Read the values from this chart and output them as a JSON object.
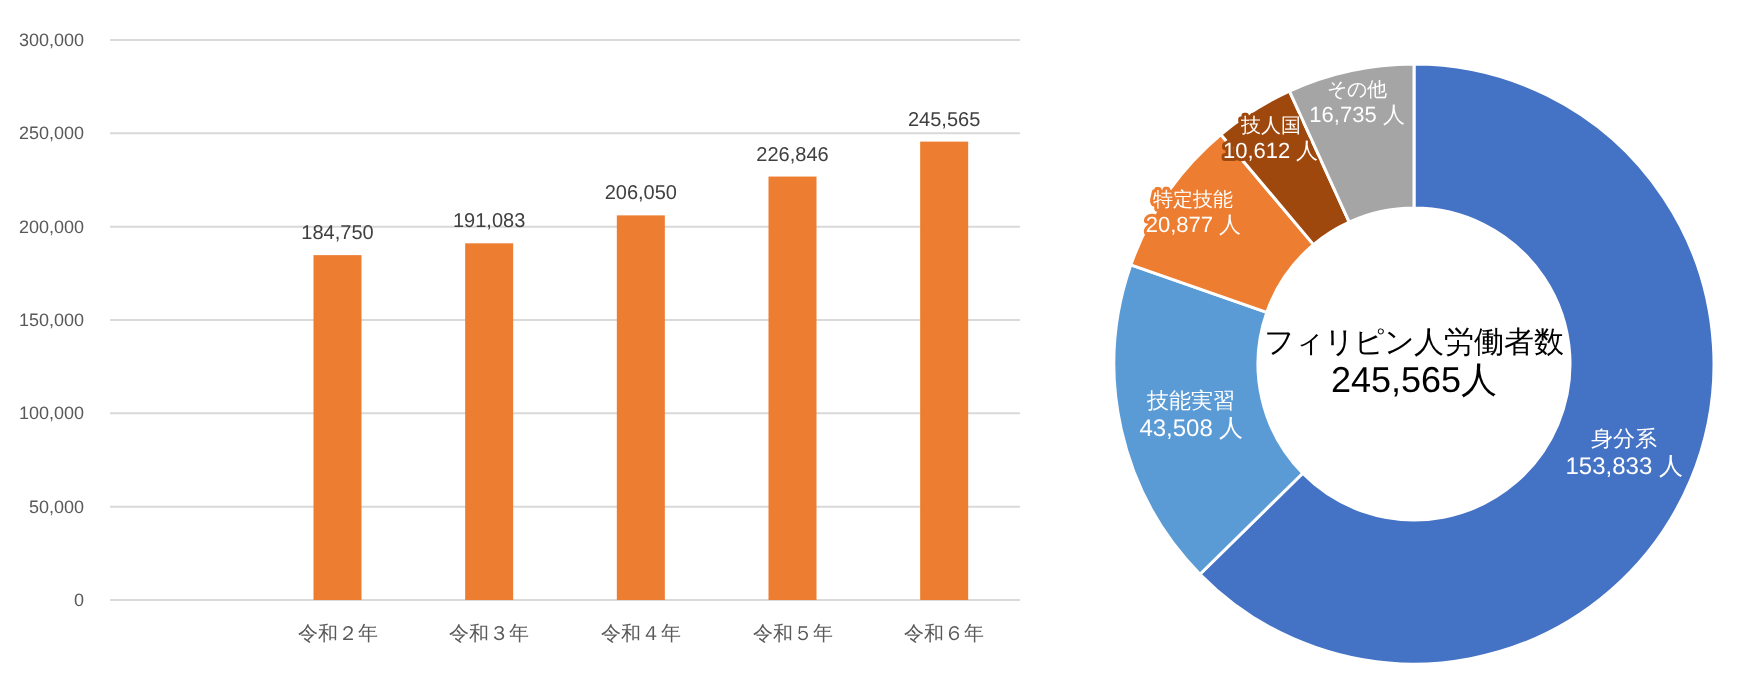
{
  "chart_data": [
    {
      "type": "bar",
      "categories": [
        null,
        "令和２年",
        "令和３年",
        "令和４年",
        "令和５年",
        "令和６年"
      ],
      "values": [
        null,
        184750,
        191083,
        206050,
        226846,
        245565
      ],
      "color": "#ed7d31",
      "value_labels": [
        null,
        "184,750",
        "191,083",
        "206,050",
        "226,846",
        "245,565"
      ],
      "grid": "y",
      "ylim": [
        0,
        300000
      ],
      "yticks": [
        0,
        {
          "value": 50000,
          "label": "50,000"
        },
        {
          "value": 100000,
          "label": "100,000"
        },
        {
          "value": 150000,
          "label": "150,000"
        },
        {
          "value": 200000,
          "label": "200,000"
        },
        {
          "value": 250000,
          "label": "250,000"
        },
        {
          "value": 300000,
          "label": "300,000"
        }
      ]
    },
    {
      "type": "donut",
      "categories": [
        "身分系",
        "技能実習",
        "特定技能",
        "技人国",
        "その他"
      ],
      "values": [
        153833,
        43508,
        20877,
        10612,
        16735
      ],
      "colors": [
        "#4472c4",
        "#5b9bd5",
        "#ed7d31",
        "#9e480e",
        "#a5a5a5"
      ],
      "value_labels": [
        "153,833 人",
        "43,508 人",
        "20,877 人",
        "10,612 人",
        "16,735 人"
      ],
      "annotations": [
        "フィリピン人労働者数",
        "245,565人"
      ]
    }
  ]
}
